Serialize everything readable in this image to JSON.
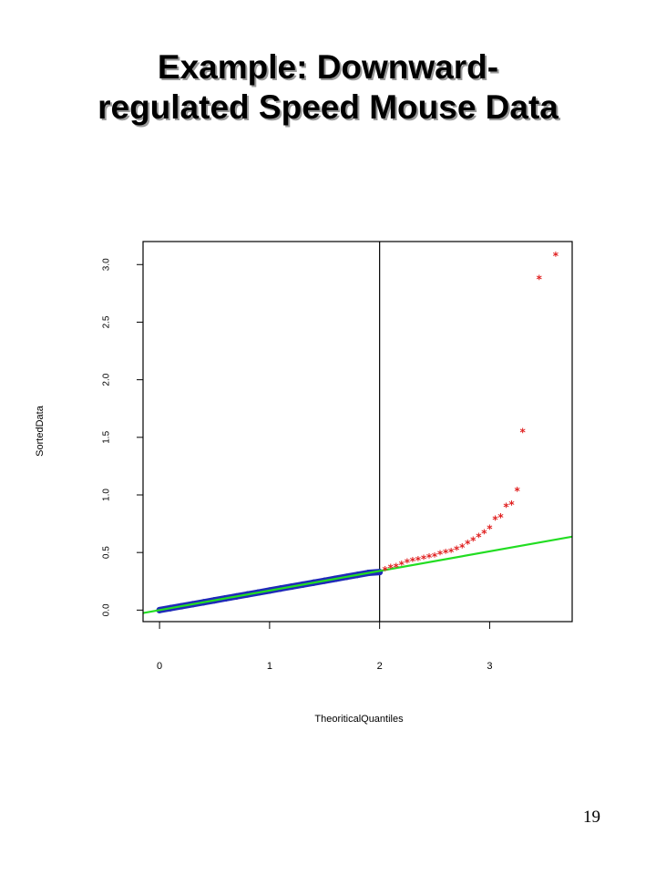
{
  "slide": {
    "title_line1": "Example:  Downward-",
    "title_line2": "regulated Speed Mouse Data",
    "page_number": "19"
  },
  "chart_data": {
    "type": "scatter",
    "xlabel": "TheoriticalQuantiles",
    "ylabel": "SortedData",
    "xlim": [
      -0.15,
      3.75
    ],
    "ylim": [
      -0.1,
      3.2
    ],
    "x_ticks": [
      0,
      1,
      2,
      3
    ],
    "x_tick_labels": [
      "0",
      "1",
      "2",
      "3"
    ],
    "y_ticks": [
      0.0,
      0.5,
      1.0,
      1.5,
      2.0,
      2.5,
      3.0
    ],
    "y_tick_labels": [
      "0.0",
      "0.5",
      "1.0",
      "1.5",
      "2.0",
      "2.5",
      "3.0"
    ],
    "grid": false,
    "reference_vline_x": 2,
    "colors": {
      "fit_line": "#22dd22",
      "below_cutoff": "#1f2ab8",
      "above_cutoff": "#e02020",
      "vline": "#000000"
    },
    "fit_line": {
      "slope": 0.17,
      "intercept": 0.0
    },
    "series": [
      {
        "marker": "dot",
        "x": [
          0,
          0.1,
          0.2,
          0.3,
          0.4,
          0.5,
          0.6,
          0.7,
          0.8,
          0.9,
          1.0,
          1.1,
          1.2,
          1.3,
          1.4,
          1.5,
          1.6,
          1.7,
          1.8,
          1.9,
          2.0
        ],
        "y": [
          0,
          0.017,
          0.034,
          0.051,
          0.068,
          0.085,
          0.102,
          0.119,
          0.136,
          0.153,
          0.17,
          0.187,
          0.204,
          0.221,
          0.238,
          0.255,
          0.272,
          0.289,
          0.306,
          0.323,
          0.33
        ]
      },
      {
        "marker": "star",
        "x": [
          2.05,
          2.1,
          2.15,
          2.2,
          2.25,
          2.3,
          2.35,
          2.4,
          2.45,
          2.5,
          2.55,
          2.6,
          2.65,
          2.7,
          2.75,
          2.8,
          2.85,
          2.9,
          2.95,
          3.0,
          3.05,
          3.1,
          3.15,
          3.2,
          3.25,
          3.3,
          3.45,
          3.6
        ],
        "y": [
          0.35,
          0.37,
          0.38,
          0.4,
          0.42,
          0.43,
          0.44,
          0.45,
          0.46,
          0.47,
          0.49,
          0.5,
          0.51,
          0.53,
          0.55,
          0.58,
          0.61,
          0.64,
          0.67,
          0.71,
          0.79,
          0.81,
          0.9,
          0.92,
          1.04,
          1.55,
          2.88,
          3.08
        ]
      }
    ]
  }
}
